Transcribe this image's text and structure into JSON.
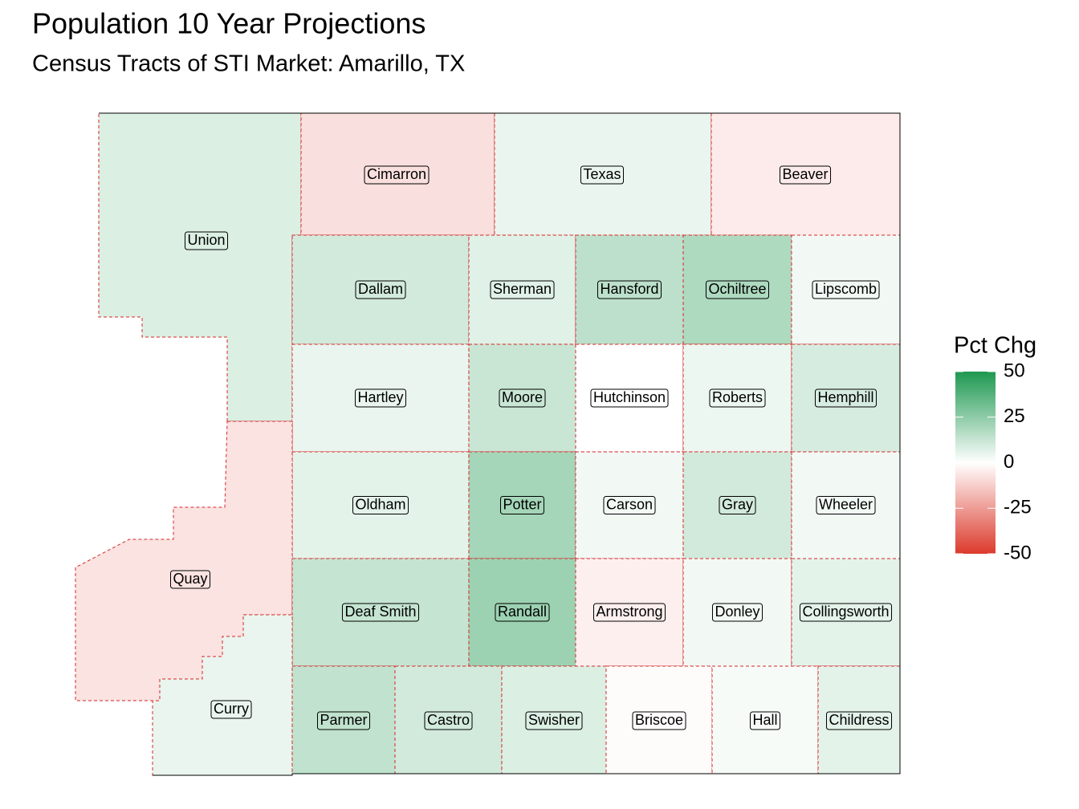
{
  "map": {
    "title": "Population 10 Year Projections",
    "subtitle": "Census Tracts of STI Market: Amarillo, TX",
    "legend": {
      "title": "Pct Chg",
      "limits": [
        -50,
        50
      ],
      "ticks": [
        50,
        25,
        0,
        -25,
        -50
      ],
      "colors": {
        "low": "#dc3a2c",
        "mid": "#ffffff",
        "high": "#1e9850"
      }
    },
    "regions": [
      {
        "name": "Union",
        "value": 8
      },
      {
        "name": "Cimarron",
        "value": -8
      },
      {
        "name": "Texas",
        "value": 5
      },
      {
        "name": "Beaver",
        "value": -5
      },
      {
        "name": "Dallam",
        "value": 10
      },
      {
        "name": "Sherman",
        "value": 7
      },
      {
        "name": "Hansford",
        "value": 15
      },
      {
        "name": "Ochiltree",
        "value": 18
      },
      {
        "name": "Lipscomb",
        "value": 3
      },
      {
        "name": "Hartley",
        "value": 5
      },
      {
        "name": "Moore",
        "value": 12
      },
      {
        "name": "Hutchinson",
        "value": 0
      },
      {
        "name": "Roberts",
        "value": 4
      },
      {
        "name": "Hemphill",
        "value": 9
      },
      {
        "name": "Oldham",
        "value": 6
      },
      {
        "name": "Potter",
        "value": 20
      },
      {
        "name": "Carson",
        "value": 3
      },
      {
        "name": "Gray",
        "value": 10
      },
      {
        "name": "Wheeler",
        "value": 3
      },
      {
        "name": "Quay",
        "value": -7
      },
      {
        "name": "Deaf Smith",
        "value": 13
      },
      {
        "name": "Randall",
        "value": 22
      },
      {
        "name": "Armstrong",
        "value": -4
      },
      {
        "name": "Donley",
        "value": 3
      },
      {
        "name": "Collingsworth",
        "value": 6
      },
      {
        "name": "Curry",
        "value": 5
      },
      {
        "name": "Parmer",
        "value": 14
      },
      {
        "name": "Castro",
        "value": 10
      },
      {
        "name": "Swisher",
        "value": 8
      },
      {
        "name": "Briscoe",
        "value": -1
      },
      {
        "name": "Hall",
        "value": 2
      },
      {
        "name": "Childress",
        "value": 6
      }
    ]
  }
}
